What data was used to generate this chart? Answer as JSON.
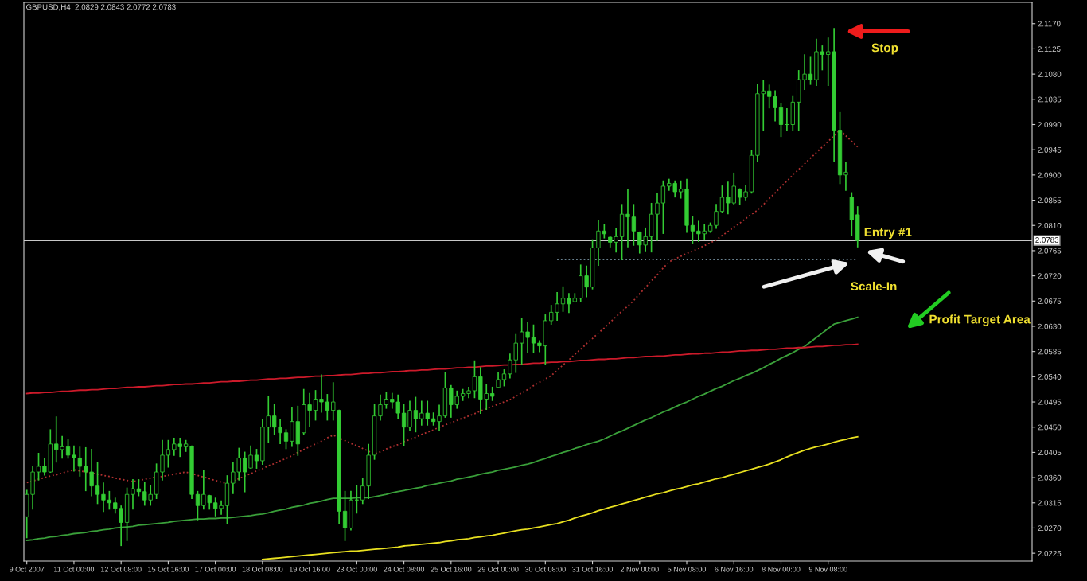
{
  "chart_data": {
    "type": "candlestick",
    "title": "GBPUSD,H4  2.0829 2.0843 2.0772 2.0783",
    "color": "#33cc33",
    "categories": [
      "9 Oct 2007",
      null,
      null,
      null,
      null,
      null,
      null,
      null,
      "11 Oct 00:00",
      null,
      null,
      null,
      null,
      null,
      null,
      null,
      "12 Oct 08:00",
      null,
      null,
      null,
      null,
      null,
      null,
      null,
      "15 Oct 16:00",
      null,
      null,
      null,
      null,
      null,
      null,
      null,
      "17 Oct 00:00",
      null,
      null,
      null,
      null,
      null,
      null,
      null,
      "18 Oct 08:00",
      null,
      null,
      null,
      null,
      null,
      null,
      null,
      "19 Oct 16:00",
      null,
      null,
      null,
      null,
      null,
      null,
      null,
      "23 Oct 00:00",
      null,
      null,
      null,
      null,
      null,
      null,
      null,
      "24 Oct 08:00",
      null,
      null,
      null,
      null,
      null,
      null,
      null,
      "25 Oct 16:00",
      null,
      null,
      null,
      null,
      null,
      null,
      null,
      "29 Oct 00:00",
      null,
      null,
      null,
      null,
      null,
      null,
      null,
      "30 Oct 08:00",
      null,
      null,
      null,
      null,
      null,
      null,
      null,
      "31 Oct 16:00",
      null,
      null,
      null,
      null,
      null,
      null,
      null,
      "2 Nov 00:00",
      null,
      null,
      null,
      null,
      null,
      null,
      null,
      "5 Nov 08:00",
      null,
      null,
      null,
      null,
      null,
      null,
      null,
      "6 Nov 16:00",
      null,
      null,
      null,
      null,
      null,
      null,
      null,
      "8 Nov 00:00",
      null,
      null,
      null,
      null,
      null,
      null,
      null,
      "9 Nov 08:00",
      null,
      null,
      null,
      null,
      null
    ],
    "ohlc": [
      [
        2.029,
        2.0337,
        2.0253,
        2.033
      ],
      [
        2.033,
        2.0379,
        2.0304,
        2.037
      ],
      [
        2.037,
        2.0403,
        2.0356,
        2.038
      ],
      [
        2.038,
        2.0393,
        2.0365,
        2.037
      ],
      [
        2.037,
        2.0445,
        2.037,
        2.042
      ],
      [
        2.042,
        2.0468,
        2.0388,
        2.041
      ],
      [
        2.041,
        2.0433,
        2.0395,
        2.0415
      ],
      [
        2.0415,
        2.0427,
        2.0395,
        2.04
      ],
      [
        2.04,
        2.0416,
        2.0372,
        2.0395
      ],
      [
        2.0395,
        2.0414,
        2.0363,
        2.038
      ],
      [
        2.038,
        2.0413,
        2.0337,
        2.037
      ],
      [
        2.037,
        2.041,
        2.0328,
        2.0345
      ],
      [
        2.0345,
        2.0386,
        2.0314,
        2.033
      ],
      [
        2.033,
        2.035,
        2.03,
        2.032
      ],
      [
        2.032,
        2.0335,
        2.0304,
        2.0315
      ],
      [
        2.0315,
        2.0323,
        2.0297,
        2.0305
      ],
      [
        2.0305,
        2.0309,
        2.0239,
        2.028
      ],
      [
        2.028,
        2.0341,
        2.0248,
        2.033
      ],
      [
        2.033,
        2.0356,
        2.0304,
        2.034
      ],
      [
        2.034,
        2.0356,
        2.0328,
        2.0335
      ],
      [
        2.0335,
        2.0351,
        2.0311,
        2.032
      ],
      [
        2.032,
        2.0346,
        2.0311,
        2.033
      ],
      [
        2.033,
        2.0384,
        2.0323,
        2.037
      ],
      [
        2.037,
        2.0426,
        2.0356,
        2.04
      ],
      [
        2.04,
        2.0426,
        2.0379,
        2.041
      ],
      [
        2.041,
        2.043,
        2.04,
        2.042
      ],
      [
        2.042,
        2.043,
        2.0398,
        2.0415
      ],
      [
        2.0415,
        2.0426,
        2.0407,
        2.042
      ],
      [
        2.0416,
        2.0416,
        2.0323,
        2.033
      ],
      [
        2.033,
        2.0335,
        2.0285,
        2.031
      ],
      [
        2.031,
        2.0372,
        2.0304,
        2.033
      ],
      [
        2.0328,
        2.0328,
        2.0304,
        2.0315
      ],
      [
        2.0315,
        2.0323,
        2.0292,
        2.0305
      ],
      [
        2.0305,
        2.0318,
        2.0295,
        2.031
      ],
      [
        2.031,
        2.0363,
        2.0278,
        2.035
      ],
      [
        2.035,
        2.0386,
        2.0332,
        2.037
      ],
      [
        2.037,
        2.0412,
        2.0356,
        2.0395
      ],
      [
        2.0395,
        2.0405,
        2.0335,
        2.037
      ],
      [
        2.0377,
        2.0416,
        2.0377,
        2.04
      ],
      [
        2.04,
        2.041,
        2.0377,
        2.039
      ],
      [
        2.039,
        2.0463,
        2.0384,
        2.045
      ],
      [
        2.045,
        2.0505,
        2.0423,
        2.047
      ],
      [
        2.047,
        2.0491,
        2.0437,
        2.045
      ],
      [
        2.045,
        2.0463,
        2.0421,
        2.044
      ],
      [
        2.044,
        2.0445,
        2.0412,
        2.0425
      ],
      [
        2.0425,
        2.0484,
        2.0416,
        2.046
      ],
      [
        2.046,
        2.0487,
        2.04,
        2.042
      ],
      [
        2.044,
        2.0517,
        2.0437,
        2.049
      ],
      [
        2.049,
        2.051,
        2.0451,
        2.048
      ],
      [
        2.048,
        2.0515,
        2.0463,
        2.05
      ],
      [
        2.05,
        2.0543,
        2.0477,
        2.0495
      ],
      [
        2.0495,
        2.0508,
        2.0463,
        2.048
      ],
      [
        2.048,
        2.0529,
        2.0463,
        2.0495
      ],
      [
        2.048,
        2.048,
        2.0278,
        2.03
      ],
      [
        2.03,
        2.0335,
        2.0248,
        2.027
      ],
      [
        2.027,
        2.0335,
        2.0267,
        2.032
      ],
      [
        2.032,
        2.0346,
        2.0297,
        2.032
      ],
      [
        2.032,
        2.0358,
        2.0314,
        2.0345
      ],
      [
        2.0345,
        2.0419,
        2.0323,
        2.04
      ],
      [
        2.04,
        2.0491,
        2.0393,
        2.047
      ],
      [
        2.047,
        2.0507,
        2.0463,
        2.049
      ],
      [
        2.049,
        2.0512,
        2.0484,
        2.05
      ],
      [
        2.05,
        2.051,
        2.0484,
        2.0495
      ],
      [
        2.0495,
        2.0507,
        2.0465,
        2.0475
      ],
      [
        2.0475,
        2.0491,
        2.0418,
        2.045
      ],
      [
        2.045,
        2.0496,
        2.0444,
        2.048
      ],
      [
        2.048,
        2.0503,
        2.0442,
        2.0465
      ],
      [
        2.0465,
        2.0496,
        2.0454,
        2.0475
      ],
      [
        2.0475,
        2.0496,
        2.0454,
        2.0465
      ],
      [
        2.0465,
        2.0475,
        2.0454,
        2.046
      ],
      [
        2.046,
        2.0489,
        2.0444,
        2.047
      ],
      [
        2.047,
        2.0547,
        2.0468,
        2.052
      ],
      [
        2.052,
        2.0524,
        2.0468,
        2.049
      ],
      [
        2.049,
        2.0514,
        2.0484,
        2.0505
      ],
      [
        2.0505,
        2.0517,
        2.0498,
        2.051
      ],
      [
        2.051,
        2.0521,
        2.0503,
        2.0515
      ],
      [
        2.0515,
        2.0568,
        2.0503,
        2.054
      ],
      [
        2.054,
        2.0556,
        2.0475,
        2.05
      ],
      [
        2.05,
        2.0526,
        2.0482,
        2.051
      ],
      [
        2.051,
        2.0521,
        2.0498,
        2.0505
      ],
      [
        2.0521,
        2.0547,
        2.0521,
        2.0535
      ],
      [
        2.0535,
        2.0552,
        2.0524,
        2.0545
      ],
      [
        2.0545,
        2.058,
        2.0538,
        2.057
      ],
      [
        2.057,
        2.0615,
        2.0548,
        2.06
      ],
      [
        2.06,
        2.0643,
        2.0563,
        2.062
      ],
      [
        2.062,
        2.0637,
        2.0583,
        2.061
      ],
      [
        2.061,
        2.0632,
        2.0583,
        2.06
      ],
      [
        2.06,
        2.0604,
        2.0585,
        2.0595
      ],
      [
        2.0595,
        2.065,
        2.0562,
        2.064
      ],
      [
        2.064,
        2.0667,
        2.0634,
        2.0655
      ],
      [
        2.0655,
        2.069,
        2.0641,
        2.067
      ],
      [
        2.067,
        2.07,
        2.0657,
        2.068
      ],
      [
        2.068,
        2.0688,
        2.0655,
        2.067
      ],
      [
        2.0674,
        2.0688,
        2.0674,
        2.068
      ],
      [
        2.068,
        2.0739,
        2.0674,
        2.072
      ],
      [
        2.072,
        2.0737,
        2.0683,
        2.07
      ],
      [
        2.07,
        2.0784,
        2.0697,
        2.077
      ],
      [
        2.077,
        2.0819,
        2.0739,
        2.08
      ],
      [
        2.08,
        2.0812,
        2.0788,
        2.0795
      ],
      [
        2.0789,
        2.0789,
        2.0772,
        2.078
      ],
      [
        2.078,
        2.0805,
        2.0763,
        2.079
      ],
      [
        2.079,
        2.0847,
        2.0749,
        2.083
      ],
      [
        2.083,
        2.0873,
        2.0772,
        2.0825
      ],
      [
        2.0825,
        2.0847,
        2.0775,
        2.08
      ],
      [
        2.0798,
        2.0798,
        2.0761,
        2.0775
      ],
      [
        2.0775,
        2.0805,
        2.0765,
        2.079
      ],
      [
        2.079,
        2.0849,
        2.0763,
        2.083
      ],
      [
        2.083,
        2.0866,
        2.0784,
        2.085
      ],
      [
        2.085,
        2.0889,
        2.0796,
        2.088
      ],
      [
        2.088,
        2.0892,
        2.0873,
        2.0885
      ],
      [
        2.0885,
        2.0889,
        2.0861,
        2.087
      ],
      [
        2.087,
        2.0889,
        2.0859,
        2.0875
      ],
      [
        2.0875,
        2.0892,
        2.0798,
        2.081
      ],
      [
        2.081,
        2.0826,
        2.0779,
        2.08
      ],
      [
        2.08,
        2.0817,
        2.0782,
        2.0795
      ],
      [
        2.0795,
        2.0812,
        2.0786,
        2.08
      ],
      [
        2.08,
        2.0814,
        2.0798,
        2.081
      ],
      [
        2.081,
        2.0847,
        2.0805,
        2.0835
      ],
      [
        2.0835,
        2.088,
        2.0833,
        2.086
      ],
      [
        2.086,
        2.0887,
        2.0831,
        2.085
      ],
      [
        2.085,
        2.0903,
        2.0847,
        2.088
      ],
      [
        2.0875,
        2.0875,
        2.0847,
        2.086
      ],
      [
        2.086,
        2.088,
        2.0856,
        2.087
      ],
      [
        2.087,
        2.0943,
        2.0868,
        2.0935
      ],
      [
        2.0935,
        2.1062,
        2.0925,
        2.1045
      ],
      [
        2.1045,
        2.1069,
        2.098,
        2.105
      ],
      [
        2.105,
        2.106,
        2.102,
        2.104
      ],
      [
        2.104,
        2.105,
        2.0997,
        2.102
      ],
      [
        2.102,
        2.1027,
        2.0969,
        2.099
      ],
      [
        2.099,
        2.1018,
        2.098,
        2.099
      ],
      [
        2.099,
        2.1041,
        2.098,
        2.103
      ],
      [
        2.103,
        2.1086,
        2.098,
        2.107
      ],
      [
        2.107,
        2.1114,
        2.1053,
        2.108
      ],
      [
        2.108,
        2.1111,
        2.1062,
        2.107
      ],
      [
        2.107,
        2.1142,
        2.106,
        2.112
      ],
      [
        2.112,
        2.113,
        2.1088,
        2.1115
      ],
      [
        2.1115,
        2.1144,
        2.106,
        2.112
      ],
      [
        2.112,
        2.1161,
        2.0924,
        2.098
      ],
      [
        2.098,
        2.1011,
        2.0885,
        2.09
      ],
      [
        2.09,
        2.0922,
        2.0873,
        2.0905
      ],
      [
        2.086,
        2.0868,
        2.0792,
        2.082
      ],
      [
        2.0829,
        2.0843,
        2.0772,
        2.0783
      ]
    ],
    "series": [
      {
        "type": "line",
        "color": "#b03030",
        "line_style": "dotted",
        "values": [
          2.0351,
          2.0354,
          2.0357,
          2.036,
          2.0363,
          2.0365,
          2.0368,
          2.0371,
          2.0374,
          2.0372,
          2.037,
          2.0368,
          2.0366,
          2.0364,
          2.0362,
          2.0359,
          2.0357,
          2.0355,
          2.0353,
          2.0355,
          2.0357,
          2.0359,
          2.0361,
          2.0362,
          2.0364,
          2.0366,
          2.0368,
          2.037,
          2.0367,
          2.0364,
          2.0361,
          2.0358,
          2.0355,
          2.0352,
          2.0349,
          2.0354,
          2.0358,
          2.0363,
          2.0367,
          2.0372,
          2.0376,
          2.0381,
          2.0385,
          2.039,
          2.0394,
          2.0399,
          2.0405,
          2.041,
          2.0415,
          2.042,
          2.0425,
          2.0431,
          2.0436,
          2.0431,
          2.0426,
          2.0421,
          2.0417,
          2.0412,
          2.0407,
          2.0402,
          2.0406,
          2.0411,
          2.0415,
          2.0419,
          2.0424,
          2.0428,
          2.0432,
          2.0437,
          2.0441,
          2.0445,
          2.045,
          2.0454,
          2.0458,
          2.0462,
          2.0466,
          2.047,
          2.0474,
          2.0479,
          2.0483,
          2.0487,
          2.0491,
          2.0495,
          2.0499,
          2.0505,
          2.0511,
          2.0517,
          2.0524,
          2.053,
          2.0536,
          2.0542,
          2.0551,
          2.0561,
          2.057,
          2.058,
          2.0589,
          2.0599,
          2.0608,
          2.0618,
          2.0627,
          2.0637,
          2.0647,
          2.0657,
          2.0666,
          2.0676,
          2.0688,
          2.0699,
          2.0711,
          2.0722,
          2.0734,
          2.0745,
          2.075,
          2.0755,
          2.076,
          2.0764,
          2.0769,
          2.0774,
          2.0779,
          2.0784,
          2.0792,
          2.0799,
          2.0807,
          2.0814,
          2.0822,
          2.083,
          2.0837,
          2.0847,
          2.0858,
          2.0868,
          2.0879,
          2.0889,
          2.09,
          2.091,
          2.092,
          2.093,
          2.094,
          2.095,
          2.096,
          2.097,
          2.098,
          2.097,
          2.096,
          2.095
        ]
      },
      {
        "type": "line",
        "color": "#3aa03a",
        "line_style": "solid",
        "values": [
          2.0248,
          2.0249,
          2.0251,
          2.0252,
          2.0254,
          2.0255,
          2.0257,
          2.0258,
          2.026,
          2.0261,
          2.0262,
          2.0264,
          2.0265,
          2.0267,
          2.0268,
          2.027,
          2.0271,
          2.0272,
          2.0273,
          2.0275,
          2.0276,
          2.0277,
          2.0278,
          2.0279,
          2.028,
          2.0282,
          2.0283,
          2.0284,
          2.0285,
          2.0286,
          2.0286,
          2.0287,
          2.0287,
          2.0288,
          2.0288,
          2.0289,
          2.029,
          2.0291,
          2.0292,
          2.0294,
          2.0295,
          2.0297,
          2.03,
          2.0302,
          2.0304,
          2.0307,
          2.0309,
          2.0311,
          2.0314,
          2.0316,
          2.0318,
          2.0321,
          2.0323,
          2.0323,
          2.0323,
          2.0323,
          2.0324,
          2.0324,
          2.0324,
          2.0326,
          2.0328,
          2.033,
          2.0333,
          2.0335,
          2.0337,
          2.0339,
          2.0341,
          2.0343,
          2.0346,
          2.0348,
          2.035,
          2.0352,
          2.0354,
          2.0357,
          2.0359,
          2.0361,
          2.0363,
          2.0366,
          2.0368,
          2.037,
          2.0373,
          2.0375,
          2.0377,
          2.0379,
          2.0382,
          2.0384,
          2.0387,
          2.0391,
          2.0394,
          2.0398,
          2.0401,
          2.0405,
          2.0408,
          2.0412,
          2.0415,
          2.0419,
          2.0422,
          2.0425,
          2.0429,
          2.0434,
          2.0439,
          2.0443,
          2.0448,
          2.0453,
          2.0458,
          2.0463,
          2.0467,
          2.0472,
          2.0477,
          2.0481,
          2.0486,
          2.0491,
          2.0495,
          2.05,
          2.0505,
          2.0509,
          2.0514,
          2.0519,
          2.0523,
          2.0528,
          2.0533,
          2.0537,
          2.0542,
          2.0546,
          2.0551,
          2.0556,
          2.0562,
          2.0567,
          2.0573,
          2.0578,
          2.0583,
          2.0589,
          2.0594,
          2.0602,
          2.061,
          2.0618,
          2.0626,
          2.0634,
          2.0637,
          2.064,
          2.0643,
          2.0646
        ]
      },
      {
        "type": "line",
        "color": "#e8e020",
        "line_style": "solid",
        "values": [
          null,
          null,
          null,
          null,
          null,
          null,
          null,
          null,
          null,
          null,
          null,
          null,
          null,
          null,
          null,
          null,
          null,
          null,
          null,
          null,
          null,
          null,
          null,
          null,
          null,
          null,
          null,
          null,
          null,
          null,
          null,
          null,
          null,
          null,
          null,
          null,
          null,
          null,
          null,
          null,
          2.0214,
          2.0215,
          2.0216,
          2.0217,
          2.0218,
          2.0219,
          2.022,
          2.0221,
          2.0222,
          2.0223,
          2.0224,
          2.0225,
          2.0226,
          2.0227,
          2.0228,
          2.0229,
          2.0229,
          2.023,
          2.0231,
          2.0232,
          2.0233,
          2.0234,
          2.0235,
          2.0236,
          2.0238,
          2.0239,
          2.024,
          2.0241,
          2.0242,
          2.0243,
          2.0244,
          2.0246,
          2.0247,
          2.0249,
          2.025,
          2.0251,
          2.0253,
          2.0254,
          2.0256,
          2.0257,
          2.0259,
          2.0261,
          2.0263,
          2.0265,
          2.0267,
          2.0268,
          2.027,
          2.0272,
          2.0274,
          2.0276,
          2.0278,
          2.0281,
          2.0284,
          2.0288,
          2.0291,
          2.0294,
          2.0297,
          2.0301,
          2.0304,
          2.0307,
          2.031,
          2.0313,
          2.0316,
          2.0319,
          2.0322,
          2.0325,
          2.0328,
          2.0331,
          2.0333,
          2.0336,
          2.0339,
          2.0341,
          2.0344,
          2.0347,
          2.0349,
          2.0352,
          2.0355,
          2.0358,
          2.036,
          2.0363,
          2.0366,
          2.0369,
          2.0372,
          2.0375,
          2.0378,
          2.0381,
          2.0384,
          2.0388,
          2.0392,
          2.0397,
          2.0401,
          2.0405,
          2.0409,
          2.0412,
          2.0415,
          2.0417,
          2.042,
          2.0423,
          2.0426,
          2.0428,
          2.0431,
          2.0433
        ]
      },
      {
        "type": "line",
        "color": "#cc1a2a",
        "line_style": "solid",
        "values": [
          2.051,
          2.0511,
          2.0511,
          2.0512,
          2.0512,
          2.0513,
          2.0514,
          2.0514,
          2.0515,
          2.0516,
          2.0516,
          2.0517,
          2.0517,
          2.0518,
          2.0519,
          2.0519,
          2.052,
          2.0521,
          2.0521,
          2.0522,
          2.0522,
          2.0523,
          2.0524,
          2.0524,
          2.0525,
          2.0526,
          2.0526,
          2.0527,
          2.0527,
          2.0528,
          2.0529,
          2.0529,
          2.053,
          2.0531,
          2.0531,
          2.0532,
          2.0532,
          2.0533,
          2.0534,
          2.0534,
          2.0535,
          2.0536,
          2.0536,
          2.0537,
          2.0537,
          2.0538,
          2.0539,
          2.0539,
          2.054,
          2.0541,
          2.0541,
          2.0542,
          2.0542,
          2.0543,
          2.0544,
          2.0544,
          2.0545,
          2.0546,
          2.0546,
          2.0547,
          2.0547,
          2.0548,
          2.0549,
          2.0549,
          2.055,
          2.0551,
          2.0551,
          2.0552,
          2.0552,
          2.0553,
          2.0554,
          2.0554,
          2.0555,
          2.0556,
          2.0556,
          2.0557,
          2.0557,
          2.0558,
          2.0559,
          2.0559,
          2.056,
          2.0561,
          2.0561,
          2.0562,
          2.0562,
          2.0563,
          2.0564,
          2.0564,
          2.0565,
          2.0566,
          2.0566,
          2.0567,
          2.0567,
          2.0568,
          2.0569,
          2.0569,
          2.057,
          2.0571,
          2.0571,
          2.0572,
          2.0572,
          2.0573,
          2.0574,
          2.0574,
          2.0575,
          2.0576,
          2.0576,
          2.0577,
          2.0577,
          2.0578,
          2.0579,
          2.0579,
          2.058,
          2.0581,
          2.0581,
          2.0582,
          2.0582,
          2.0583,
          2.0584,
          2.0584,
          2.0585,
          2.0586,
          2.0586,
          2.0587,
          2.0587,
          2.0588,
          2.0589,
          2.0589,
          2.059,
          2.0591,
          2.0591,
          2.0592,
          2.0592,
          2.0593,
          2.0594,
          2.0594,
          2.0595,
          2.0596,
          2.0596,
          2.0597,
          2.0597,
          2.0598
        ]
      },
      {
        "type": "line",
        "color": "#6a8290",
        "line_style": "dotted",
        "values": [
          null,
          null,
          null,
          null,
          null,
          null,
          null,
          null,
          null,
          null,
          null,
          null,
          null,
          null,
          null,
          null,
          null,
          null,
          null,
          null,
          null,
          null,
          null,
          null,
          null,
          null,
          null,
          null,
          null,
          null,
          null,
          null,
          null,
          null,
          null,
          null,
          null,
          null,
          null,
          null,
          null,
          null,
          null,
          null,
          null,
          null,
          null,
          null,
          null,
          null,
          null,
          null,
          null,
          null,
          null,
          null,
          null,
          null,
          null,
          null,
          null,
          null,
          null,
          null,
          null,
          null,
          null,
          null,
          null,
          null,
          null,
          null,
          null,
          null,
          null,
          null,
          null,
          null,
          null,
          null,
          null,
          null,
          null,
          null,
          null,
          null,
          null,
          null,
          null,
          null,
          2.0749,
          2.0749,
          2.0749,
          2.0749,
          2.0749,
          2.0749,
          2.0749,
          2.0749,
          2.0749,
          2.0749,
          2.0749,
          2.0749,
          2.0749,
          2.0749,
          2.0749,
          2.0749,
          2.0749,
          2.0749,
          2.0749,
          2.0749,
          2.0749,
          2.0749,
          2.0749,
          2.0749,
          2.0749,
          2.0749,
          2.0749,
          2.0749,
          2.0749,
          2.0749,
          2.0749,
          2.0749,
          2.0749,
          2.0749,
          2.0749,
          2.0749,
          2.0749,
          2.0749,
          2.0749,
          2.0749,
          2.0749,
          2.0749,
          2.0749,
          2.0749,
          2.0749,
          2.0749,
          2.0749,
          2.0749,
          2.0749,
          2.0749,
          2.0749,
          2.0749
        ]
      }
    ],
    "ref_lines": [
      {
        "axis": "y",
        "value": 2.0783,
        "label": "2.0783",
        "color": "#c8c8c8"
      }
    ],
    "annotations": [
      "Stop",
      "Entry #1",
      "Scale-In",
      "Profit Target Area"
    ],
    "ylim": [
      2.0211,
      2.1208
    ],
    "yticks": [
      {
        "value": 2.0225,
        "label": "2.0225"
      },
      {
        "value": 2.027,
        "label": "2.0270"
      },
      {
        "value": 2.0315,
        "label": "2.0315"
      },
      {
        "value": 2.036,
        "label": "2.0360"
      },
      {
        "value": 2.0405,
        "label": "2.0405"
      },
      {
        "value": 2.045,
        "label": "2.0450"
      },
      {
        "value": 2.0495,
        "label": "2.0495"
      },
      {
        "value": 2.054,
        "label": "2.0540"
      },
      {
        "value": 2.0585,
        "label": "2.0585"
      },
      {
        "value": 2.063,
        "label": "2.0630"
      },
      {
        "value": 2.0675,
        "label": "2.0675"
      },
      {
        "value": 2.072,
        "label": "2.0720"
      },
      {
        "value": 2.0765,
        "label": "2.0765"
      },
      {
        "value": 2.081,
        "label": "2.0810"
      },
      {
        "value": 2.0855,
        "label": "2.0855"
      },
      {
        "value": 2.09,
        "label": "2.0900"
      },
      {
        "value": 2.0945,
        "label": "2.0945"
      },
      {
        "value": 2.099,
        "label": "2.0990"
      },
      {
        "value": 2.1035,
        "label": "2.1035"
      },
      {
        "value": 2.108,
        "label": "2.1080"
      },
      {
        "value": 2.1125,
        "label": "2.1125"
      },
      {
        "value": 2.117,
        "label": "2.1170"
      }
    ],
    "grid": false,
    "legend": false
  }
}
